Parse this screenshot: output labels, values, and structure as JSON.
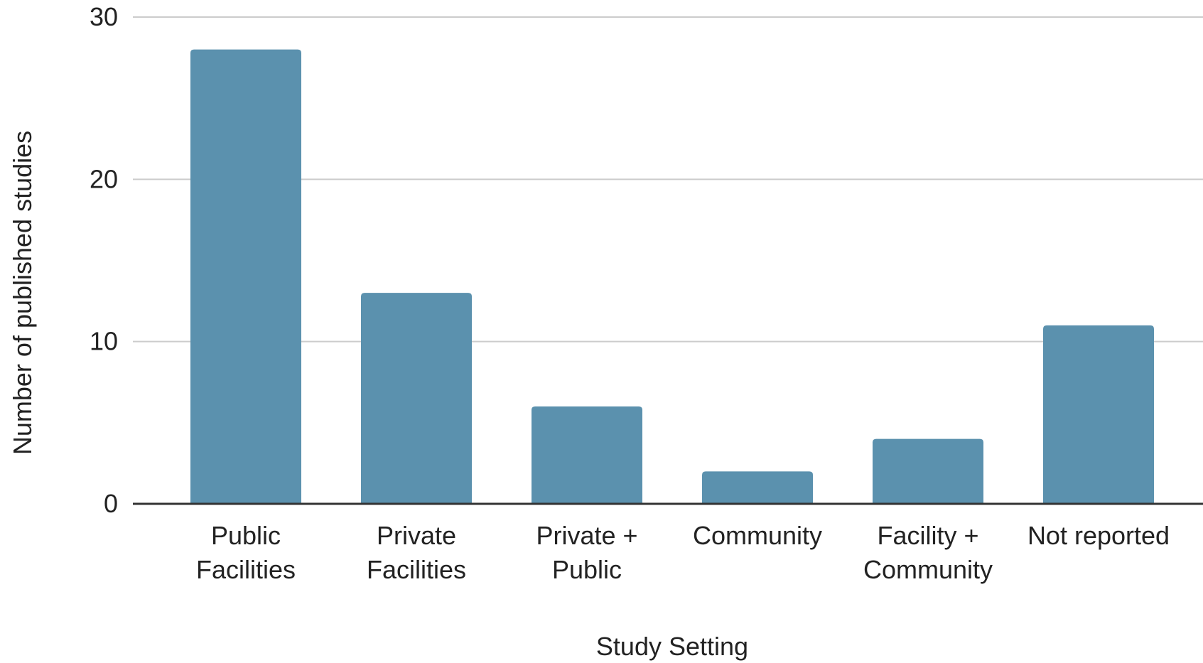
{
  "chart_data": {
    "type": "bar",
    "categories": [
      [
        "Public",
        "Facilities"
      ],
      [
        "Private",
        "Facilities"
      ],
      [
        "Private +",
        "Public"
      ],
      [
        "Community"
      ],
      [
        "Facility +",
        "Community"
      ],
      [
        "Not reported"
      ]
    ],
    "values": [
      28,
      13,
      6,
      2,
      4,
      11
    ],
    "xlabel": "Study Setting",
    "ylabel": "Number of published studies",
    "ylim": [
      0,
      30
    ],
    "yticks": [
      0,
      10,
      20,
      30
    ],
    "grid": true,
    "legend": "none",
    "bar_color": "#5b91ae"
  }
}
